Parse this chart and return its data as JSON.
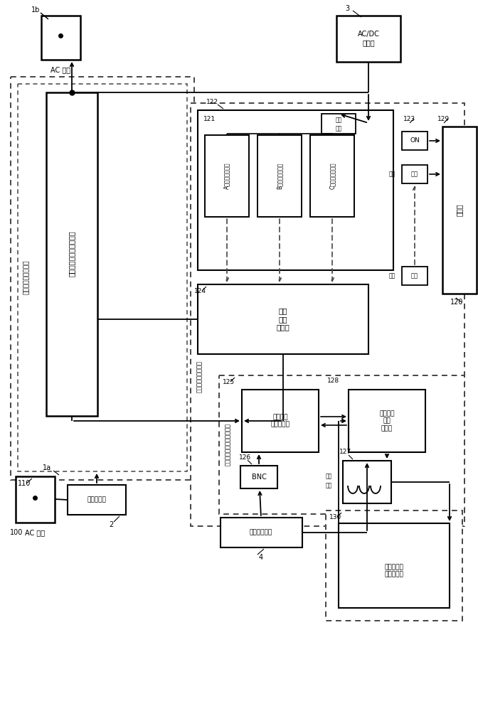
{
  "bg": "#ffffff",
  "labels": {
    "1a": "1a",
    "1b": "1b",
    "2": "2",
    "3": "3",
    "4": "4",
    "100": "100",
    "110": "110",
    "120": "120",
    "121": "121",
    "122": "122",
    "123": "123",
    "124": "124",
    "125": "125",
    "126": "126",
    "127": "127",
    "128": "128",
    "129": "129",
    "130": "130",
    "ac_in": "AC 输入",
    "ac_out": "AC 输出",
    "noise_filter": "噪声滤波器",
    "cell_wave": "细胞活性能量波动的产生",
    "primary": "一次能量波动产生部",
    "acdc": "AC/DC\n转换部",
    "power_in": "电源\n输入",
    "A_gen": "A低频波动产生部",
    "B_gen": "B低频波动产生部",
    "C_gen": "C低频波动产生部",
    "mixer": "低频\n整流\n混合部",
    "ON": "ON",
    "power": "电源",
    "energy": "能量",
    "display": "显示器",
    "cell_amp": "细胞活性\n复合增幅部",
    "energy_out": "能量波动\n产生\n检出部",
    "BNC": "BNC",
    "sensor": "复合能量传感",
    "coil_label": "诱导\n线圈",
    "cell_gen2": "细胞活性能\n量波动的产",
    "third": "三次复合波动产生和增幅部",
    "second": "二次能量波动产生部"
  }
}
